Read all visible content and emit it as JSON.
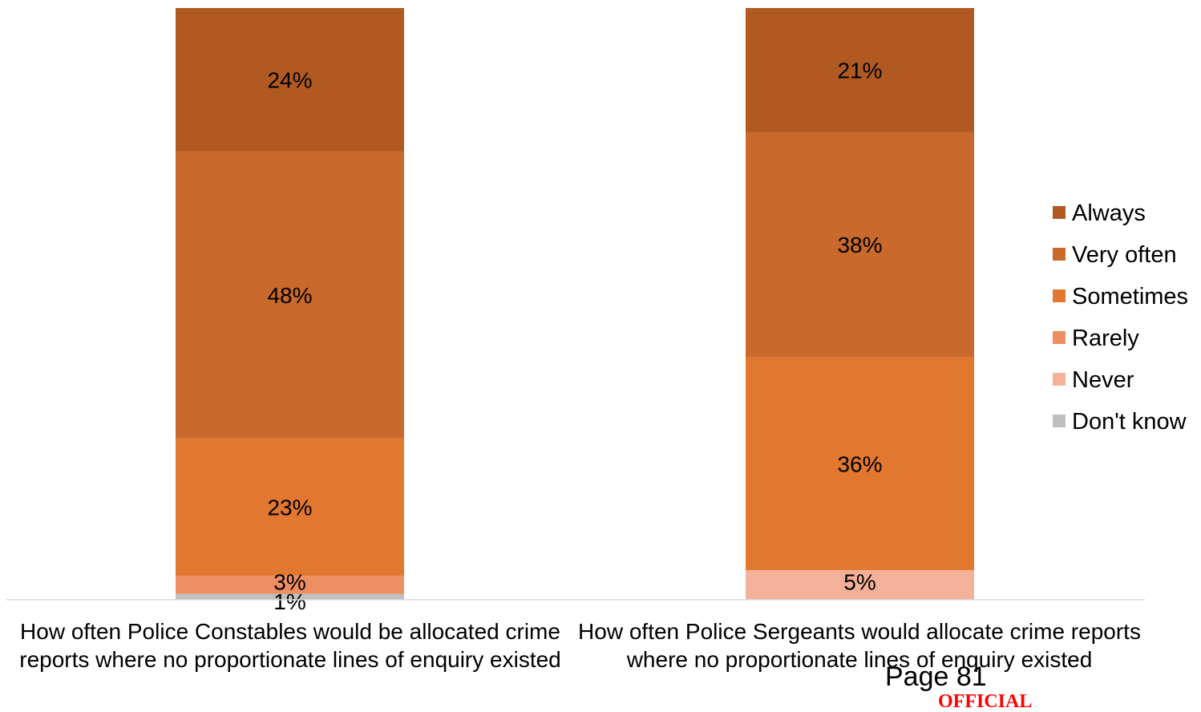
{
  "chart_data": {
    "type": "bar",
    "stacked": true,
    "orientation": "vertical",
    "title": "",
    "xlabel": "",
    "ylabel": "",
    "ylim": [
      0,
      100
    ],
    "grid": false,
    "legend_position": "right",
    "categories": [
      "How often Police Constables would  be allocated crime reports where no proportionate lines of enquiry existed",
      "How often Police Sergeants would allocate crime reports where no proportionate lines of enquiry existed"
    ],
    "series": [
      {
        "name": "Don't know",
        "color": "#bfbfbf",
        "values": [
          1,
          0
        ],
        "labels": [
          "1%",
          ""
        ]
      },
      {
        "name": "Never",
        "color": "#f4b19a",
        "values": [
          0,
          5
        ],
        "labels": [
          "",
          "5%"
        ]
      },
      {
        "name": "Rarely",
        "color": "#ee8f63",
        "values": [
          3,
          0
        ],
        "labels": [
          "3%",
          ""
        ]
      },
      {
        "name": "Sometimes",
        "color": "#e27830",
        "values": [
          23,
          36
        ],
        "labels": [
          "23%",
          "36%"
        ]
      },
      {
        "name": "Very often",
        "color": "#c9692b",
        "values": [
          48,
          38
        ],
        "labels": [
          "48%",
          "38%"
        ]
      },
      {
        "name": "Always",
        "color": "#b05a22",
        "values": [
          24,
          21
        ],
        "labels": [
          "24%",
          "21%"
        ]
      }
    ],
    "legend_order": [
      "Always",
      "Very often",
      "Sometimes",
      "Rarely",
      "Never",
      "Don't know"
    ]
  },
  "footer": {
    "page_number": "Page 81",
    "marking": "OFFICIAL"
  }
}
